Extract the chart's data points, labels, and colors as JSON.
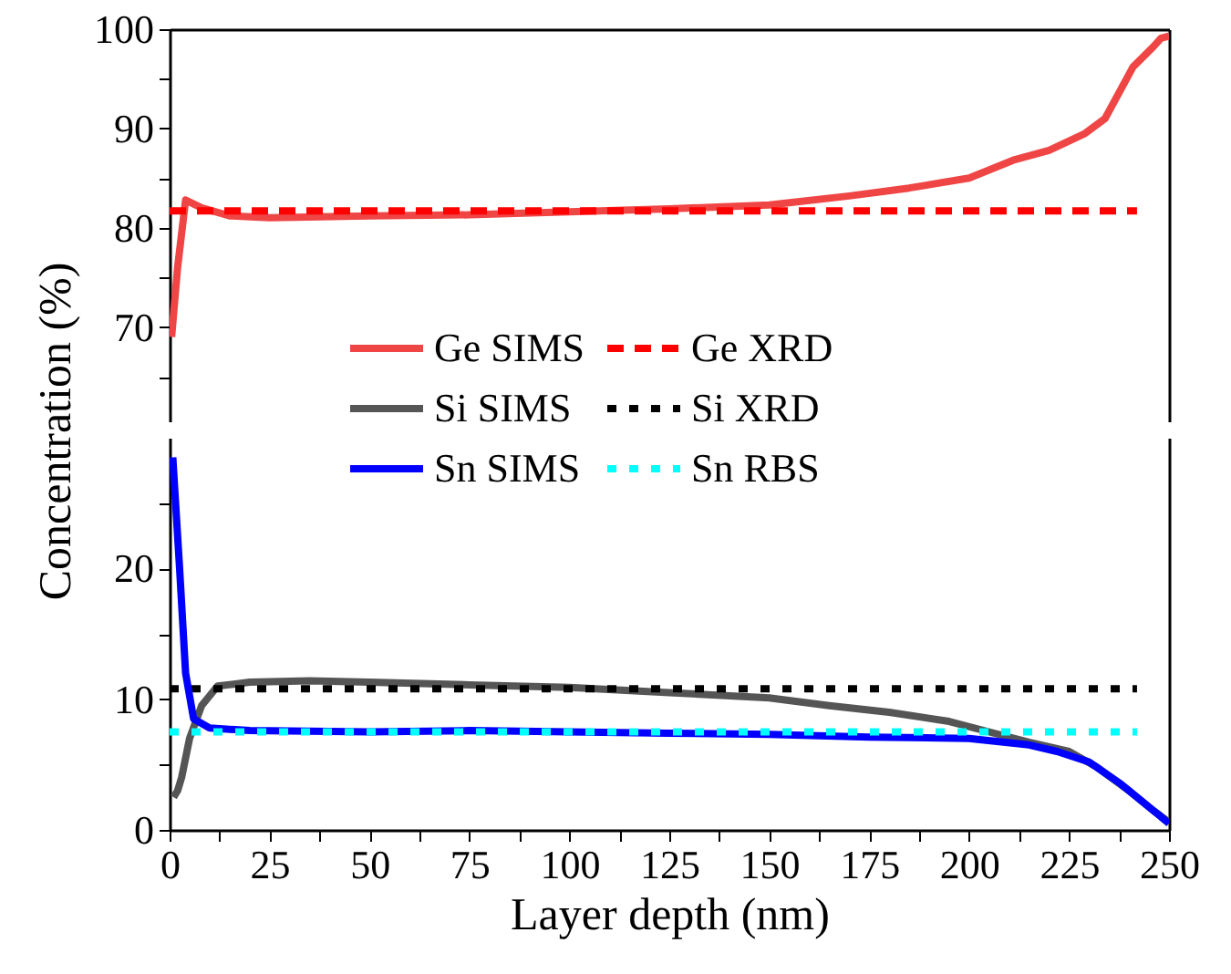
{
  "chart_data": [
    {
      "type": "line",
      "ylabel": "Concentration (%)",
      "xlim": [
        0,
        250
      ],
      "ylim": [
        60.5,
        100
      ],
      "yticks": [
        {
          "value": 65,
          "label": null
        },
        70,
        {
          "value": 75,
          "label": null
        },
        80,
        {
          "value": 85,
          "label": null
        },
        90,
        {
          "value": 95,
          "label": null
        },
        100
      ],
      "tick_labels": "y",
      "legend": "bottom",
      "series": [
        {
          "name": "Ge SIMS",
          "color": "#f04545",
          "line_style": "solid",
          "x": [
            0.5,
            2,
            4,
            6,
            8,
            15,
            25,
            50,
            75,
            100,
            125,
            150,
            170,
            185,
            200,
            211,
            220,
            229,
            234,
            241,
            246,
            248,
            250
          ],
          "values": [
            69,
            76,
            82.8,
            82.4,
            82,
            81.2,
            81,
            81.2,
            81.3,
            81.6,
            81.9,
            82.3,
            83.2,
            84,
            85,
            86.8,
            87.8,
            89.5,
            91,
            96.2,
            98.2,
            99.1,
            99.3
          ]
        },
        {
          "name": "Ge XRD",
          "color": "#ff0000",
          "line_style": "dashed",
          "x": [
            0,
            242
          ],
          "values": [
            81.7,
            81.7
          ]
        }
      ]
    },
    {
      "type": "line",
      "xlabel": "Layer depth (nm)",
      "xlim": [
        0,
        250
      ],
      "ylim": [
        0,
        30
      ],
      "xticks": [
        0,
        {
          "value": 12.5,
          "label": null
        },
        25,
        {
          "value": 37.5,
          "label": null
        },
        50,
        {
          "value": 62.5,
          "label": null
        },
        75,
        {
          "value": 87.5,
          "label": null
        },
        100,
        {
          "value": 112.5,
          "label": null
        },
        125,
        {
          "value": 137.5,
          "label": null
        },
        150,
        {
          "value": 162.5,
          "label": null
        },
        175,
        {
          "value": 187.5,
          "label": null
        },
        200,
        {
          "value": 212.5,
          "label": null
        },
        225,
        {
          "value": 237.5,
          "label": null
        },
        250
      ],
      "yticks": [
        0,
        {
          "value": 5,
          "label": null
        },
        10,
        {
          "value": 15,
          "label": null
        },
        20,
        {
          "value": 25,
          "label": null
        }
      ],
      "legend": "top",
      "series": [
        {
          "name": "Si SIMS",
          "color": "#555555",
          "line_style": "solid",
          "x": [
            1,
            2,
            3,
            5,
            8,
            12,
            20,
            35,
            50,
            75,
            100,
            125,
            150,
            165,
            180,
            195,
            205,
            215,
            225,
            232,
            240,
            246,
            250
          ],
          "values": [
            2.5,
            3,
            4,
            7,
            9.5,
            11,
            11.3,
            11.4,
            11.3,
            11.1,
            10.9,
            10.5,
            10.1,
            9.5,
            9,
            8.3,
            7.5,
            6.7,
            6,
            4.8,
            3,
            1.5,
            0.6
          ]
        },
        {
          "name": "Si XRD",
          "color": "#000000",
          "line_style": "dotted",
          "x": [
            0,
            242
          ],
          "values": [
            10.8,
            10.8
          ]
        },
        {
          "name": "Sn SIMS",
          "color": "#0000ff",
          "line_style": "solid",
          "x": [
            0.8,
            2.5,
            4,
            6,
            10,
            20,
            50,
            75,
            100,
            125,
            150,
            175,
            200,
            215,
            222,
            230,
            238,
            246,
            250
          ],
          "values": [
            28.5,
            20,
            12,
            8.5,
            7.8,
            7.6,
            7.5,
            7.6,
            7.5,
            7.4,
            7.3,
            7.1,
            7,
            6.5,
            6,
            5.2,
            3.5,
            1.5,
            0.5
          ]
        },
        {
          "name": "Sn RBS",
          "color": "#00ffff",
          "line_style": "dotted",
          "x": [
            0,
            242
          ],
          "values": [
            7.5,
            7.5
          ]
        }
      ]
    }
  ]
}
